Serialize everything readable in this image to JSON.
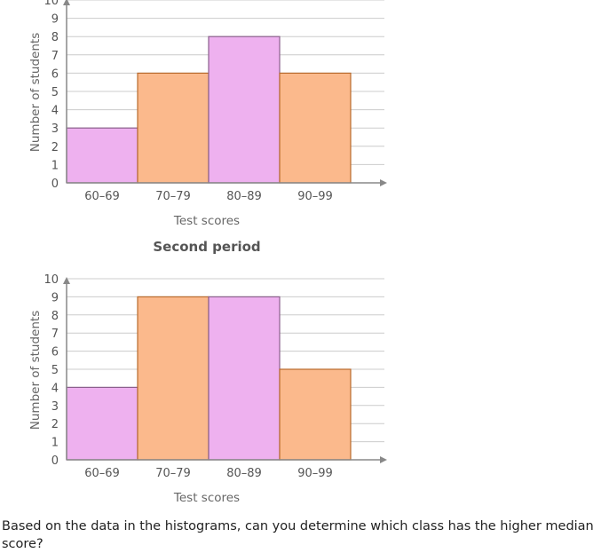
{
  "chart_data": [
    {
      "type": "bar",
      "title": "",
      "categories": [
        "60–69",
        "70–79",
        "80–89",
        "90–99"
      ],
      "values": [
        3,
        6,
        8,
        6
      ],
      "colors": [
        "#eeb1ef",
        "#fbb98c",
        "#eeb1ef",
        "#fbb98c"
      ],
      "xlabel": "Test scores",
      "ylabel": "Number of students",
      "ylim": [
        0,
        10
      ],
      "yticks": [
        "0",
        "1",
        "2",
        "3",
        "4",
        "5",
        "6",
        "7",
        "8",
        "9",
        "10"
      ],
      "grid": true
    },
    {
      "type": "bar",
      "title": "Second period",
      "categories": [
        "60–69",
        "70–79",
        "80–89",
        "90–99"
      ],
      "values": [
        4,
        9,
        9,
        5
      ],
      "colors": [
        "#eeb1ef",
        "#fbb98c",
        "#eeb1ef",
        "#fbb98c"
      ],
      "xlabel": "Test scores",
      "ylabel": "Number of students",
      "ylim": [
        0,
        10
      ],
      "yticks": [
        "0",
        "1",
        "2",
        "3",
        "4",
        "5",
        "6",
        "7",
        "8",
        "9",
        "10"
      ],
      "grid": true
    }
  ],
  "question": "Based on the data in the histograms, can you determine which class has the higher median score?",
  "colors": {
    "grid": "#cccccc",
    "axis": "#888888",
    "pink_border": "#8a5f8c",
    "orange_border": "#b96a2c"
  }
}
